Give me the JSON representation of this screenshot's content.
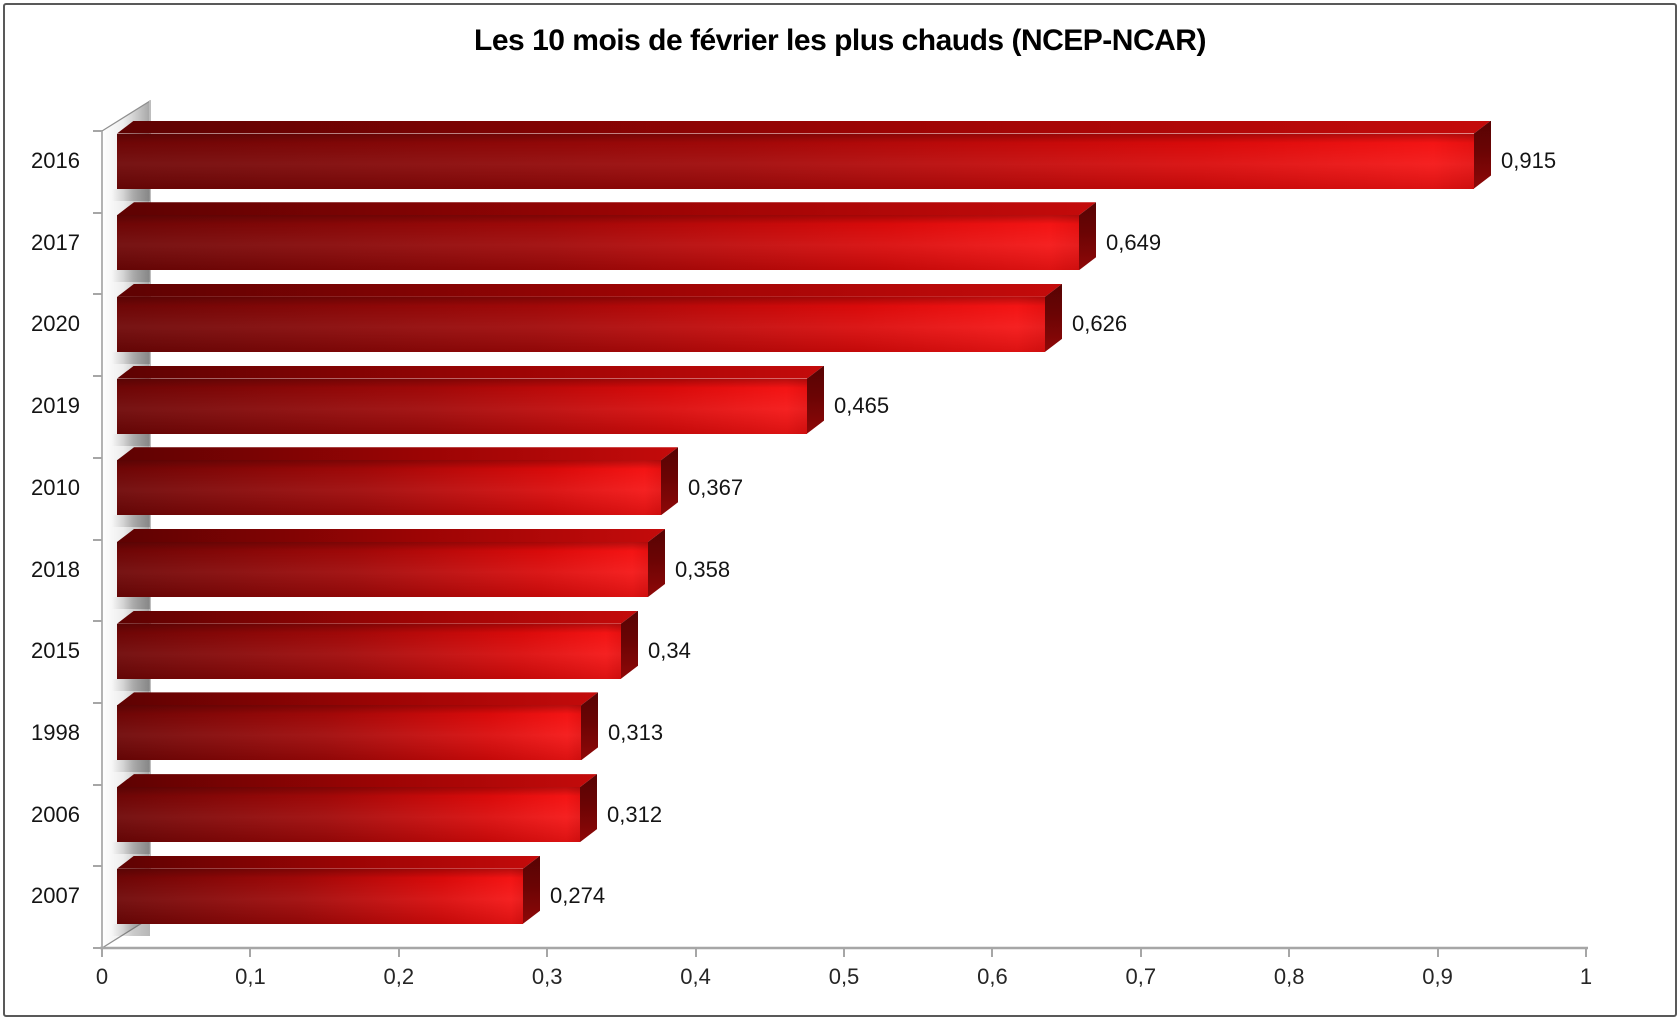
{
  "window": {
    "background": "#ffffff",
    "border_color": "#595959"
  },
  "chart_data": {
    "type": "bar",
    "orientation": "horizontal",
    "style": "3d-excel",
    "title": "Les 10 mois de février les plus chauds (NCEP-NCAR)",
    "categories": [
      "2016",
      "2017",
      "2020",
      "2019",
      "2010",
      "2018",
      "2015",
      "1998",
      "2006",
      "2007"
    ],
    "values": [
      0.915,
      0.649,
      0.626,
      0.465,
      0.367,
      0.358,
      0.34,
      0.313,
      0.312,
      0.274
    ],
    "value_labels": [
      "0,915",
      "0,649",
      "0,626",
      "0,465",
      "0,367",
      "0,358",
      "0,34",
      "0,313",
      "0,312",
      "0,274"
    ],
    "xlabel": "",
    "ylabel": "",
    "xlim": [
      0,
      1
    ],
    "x_tick_step": 0.1,
    "x_tick_labels": [
      "0",
      "0,1",
      "0,2",
      "0,3",
      "0,4",
      "0,5",
      "0,6",
      "0,7",
      "0,8",
      "0,9",
      "1"
    ],
    "grid": "off",
    "legend": "none",
    "colors": {
      "bar_front_dark": "#6e0606",
      "bar_front_bright": "#f41414",
      "bar_top_dark": "#5e0202",
      "bar_top_light": "#c40b0b",
      "bar_side_dark": "#570303",
      "bar_side_light": "#8f0808",
      "wall_light": "#ffffff",
      "wall_dark": "#a6a6a6",
      "axis": "#a6a6a6",
      "text": "#141414",
      "title_text": "#000000"
    }
  }
}
